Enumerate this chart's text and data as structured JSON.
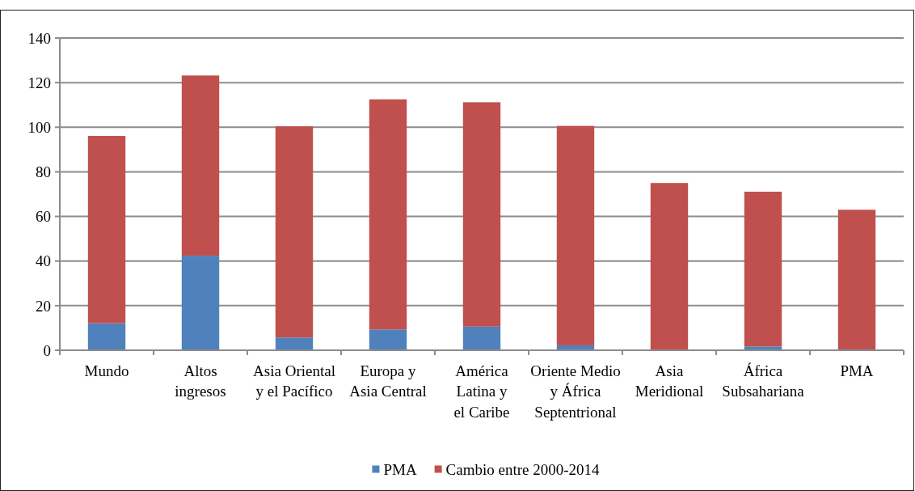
{
  "chart_data": {
    "type": "bar",
    "stacked": true,
    "categories": [
      "Mundo",
      "Altos\ningresos",
      "Asia Oriental\ny el Pacífico",
      "Europa y\nAsia Central",
      "América\nLatina y\nel Caribe",
      "Oriente Medio\ny África\nSeptentrional",
      "Asia\nMeridional",
      "África\nSubsahariana",
      "PMA"
    ],
    "series": [
      {
        "name": "PMA",
        "color": "#4f81bd",
        "values": [
          12.1,
          42.4,
          5.7,
          9.3,
          10.6,
          2.2,
          0,
          1.7,
          0
        ]
      },
      {
        "name": "Cambio entre 2000-2014",
        "color": "#c0504d",
        "values": [
          84.0,
          80.8,
          94.7,
          103.2,
          100.6,
          98.4,
          75.0,
          69.4,
          63.0
        ]
      }
    ],
    "ylim": [
      0,
      140
    ],
    "yticks": [
      0,
      20,
      40,
      60,
      80,
      100,
      120,
      140
    ],
    "grid": "y",
    "legend": "bottom"
  }
}
